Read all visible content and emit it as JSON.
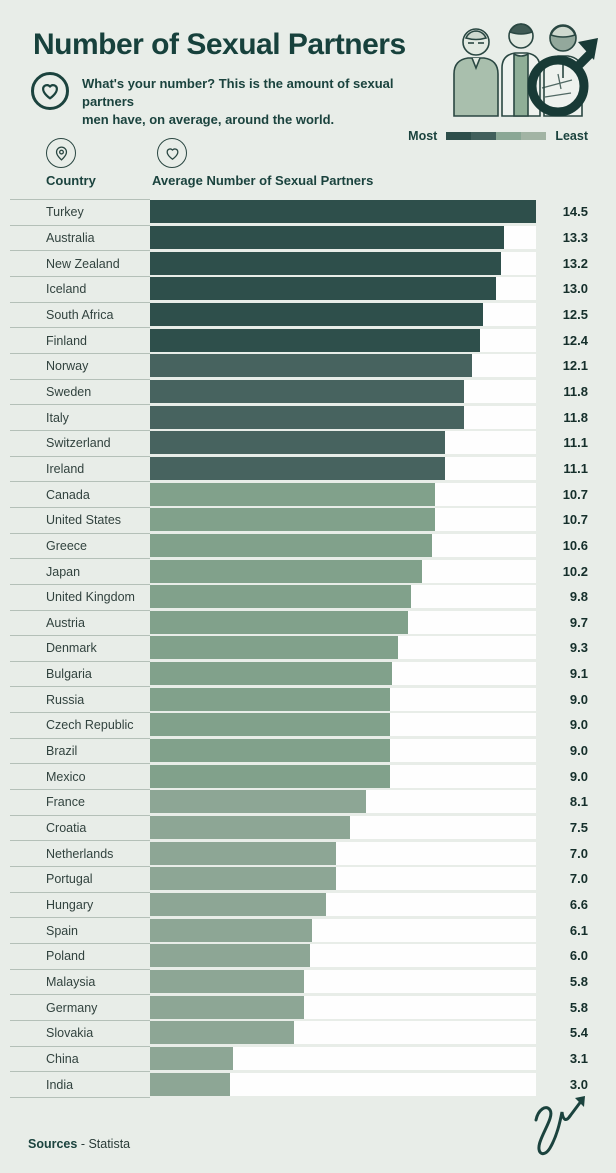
{
  "header": {
    "title": "Number of Sexual Partners",
    "subtitle_line1": "What's your number? This is the amount of sexual partners",
    "subtitle_line2": "men have, on average, around the world.",
    "legend": {
      "most_label": "Most",
      "least_label": "Least",
      "colors": [
        "#2d4e4a",
        "#415f5b",
        "#8aa795",
        "#a2b4a4"
      ]
    },
    "icons": {
      "intro": "heart-icon",
      "illustration": "three-men-and-male-symbol"
    }
  },
  "columns": {
    "country_label": "Country",
    "value_label": "Average Number of Sexual Partners"
  },
  "chart_data": {
    "type": "bar",
    "orientation": "horizontal",
    "title": "Number of Sexual Partners",
    "xlabel": "Average Number of Sexual Partners",
    "ylabel": "Country",
    "xlim": [
      0,
      14.5
    ],
    "grid": false,
    "legend_position": "top-right",
    "track_color": "#fefefe",
    "categories": [
      "Turkey",
      "Australia",
      "New Zealand",
      "Iceland",
      "South Africa",
      "Finland",
      "Norway",
      "Sweden",
      "Italy",
      "Switzerland",
      "Ireland",
      "Canada",
      "United States",
      "Greece",
      "Japan",
      "United Kingdom",
      "Austria",
      "Denmark",
      "Bulgaria",
      "Russia",
      "Czech Republic",
      "Brazil",
      "Mexico",
      "France",
      "Croatia",
      "Netherlands",
      "Portugal",
      "Hungary",
      "Spain",
      "Poland",
      "Malaysia",
      "Germany",
      "Slovakia",
      "China",
      "India"
    ],
    "values": [
      14.5,
      13.3,
      13.2,
      13.0,
      12.5,
      12.4,
      12.1,
      11.8,
      11.8,
      11.1,
      11.1,
      10.7,
      10.7,
      10.6,
      10.2,
      9.8,
      9.7,
      9.3,
      9.1,
      9.0,
      9.0,
      9.0,
      9.0,
      8.1,
      7.5,
      7.0,
      7.0,
      6.6,
      6.1,
      6.0,
      5.8,
      5.8,
      5.4,
      3.1,
      3.0
    ],
    "bar_color_buckets": [
      {
        "min": 12.4,
        "color": "#2e4f4b"
      },
      {
        "min": 11.1,
        "color": "#47635f"
      },
      {
        "min": 9.0,
        "color": "#81a18b"
      },
      {
        "min": 0,
        "color": "#8da695"
      }
    ]
  },
  "footer": {
    "sources_bold": "Sources",
    "sources_rest": " - Statista"
  },
  "colors": {
    "background": "#e8ede8",
    "title_text": "#17413c",
    "row_separator": "#b4c0b8",
    "value_text": "#152f2b"
  }
}
